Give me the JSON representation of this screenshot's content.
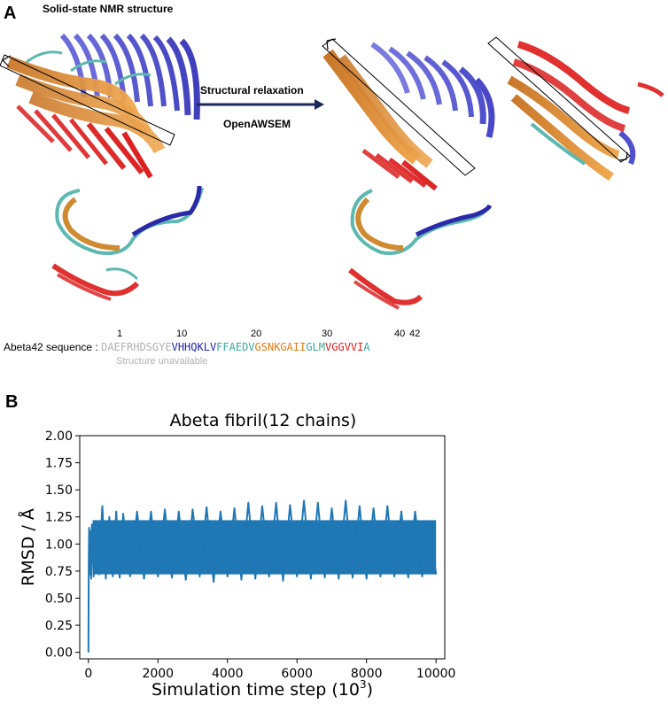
{
  "panel_a": {
    "letter": "A",
    "title": "Solid-state NMR structure",
    "arrow_label_top": "Structural relaxation",
    "arrow_label_bottom": "OpenAWSEM",
    "sequence_label": "Abeta42 sequence :",
    "sequence_segments": [
      {
        "text": "DAEFRHDSGYE",
        "color": "#b0b0b0"
      },
      {
        "text": "VHHQKLV",
        "color": "#2323b0"
      },
      {
        "text": "FFAEDV",
        "color": "#3aa8a0"
      },
      {
        "text": "GSNKGAII",
        "color": "#e07d16"
      },
      {
        "text": "GLM",
        "color": "#3aa8a0"
      },
      {
        "text": "VGGVVI",
        "color": "#e02020"
      },
      {
        "text": "A",
        "color": "#3aa8a0"
      }
    ],
    "residue_numbers": [
      "1",
      "10",
      "20",
      "30",
      "40",
      "42"
    ],
    "unavailable_note": "Structure unavailable"
  },
  "panel_b": {
    "letter": "B"
  },
  "chart_data": {
    "type": "line",
    "title": "Abeta fibril(12 chains)",
    "xlabel": "Simulation time step (10",
    "xlabel_sup": "3",
    "xlabel_end": ")",
    "ylabel": "RMSD / Å",
    "xlim": [
      -250,
      10250
    ],
    "ylim": [
      -0.06,
      2.0
    ],
    "xticks": [
      0,
      2000,
      4000,
      6000,
      8000,
      10000
    ],
    "yticks": [
      0.0,
      0.25,
      0.5,
      0.75,
      1.0,
      1.25,
      1.5,
      1.75,
      2.0
    ],
    "ytick_labels": [
      "0.00",
      "0.25",
      "0.50",
      "0.75",
      "1.00",
      "1.25",
      "1.50",
      "1.75",
      "2.00"
    ],
    "series_color": "#1f77b4",
    "series": [
      {
        "x": [
          0,
          10,
          20,
          40,
          60,
          80,
          100,
          150,
          200,
          300,
          400,
          500,
          600,
          700,
          800,
          900,
          1000,
          1200,
          1400,
          1600,
          1800,
          2000,
          2200,
          2400,
          2600,
          2800,
          3000,
          3200,
          3400,
          3600,
          3800,
          4000,
          4200,
          4400,
          4600,
          4800,
          5000,
          5200,
          5400,
          5600,
          5800,
          6000,
          6200,
          6400,
          6600,
          6800,
          7000,
          7200,
          7400,
          7600,
          7800,
          8000,
          8200,
          8400,
          8600,
          8800,
          9000,
          9200,
          9400,
          9600,
          9800,
          10000
        ],
        "y": [
          0.0,
          0.85,
          1.15,
          0.72,
          1.12,
          0.68,
          1.18,
          0.7,
          1.2,
          0.72,
          1.35,
          0.68,
          1.25,
          0.7,
          1.3,
          0.69,
          1.28,
          0.7,
          1.3,
          0.68,
          1.3,
          0.7,
          1.32,
          0.69,
          1.3,
          0.67,
          1.32,
          0.7,
          1.34,
          0.65,
          1.3,
          0.7,
          1.33,
          0.67,
          1.38,
          0.68,
          1.35,
          0.7,
          1.38,
          0.66,
          1.36,
          0.7,
          1.4,
          0.68,
          1.38,
          0.69,
          1.33,
          0.68,
          1.4,
          0.69,
          1.35,
          0.68,
          1.33,
          0.7,
          1.35,
          0.7,
          1.3,
          0.69,
          1.3,
          0.7,
          1.2,
          0.72
        ]
      }
    ]
  }
}
